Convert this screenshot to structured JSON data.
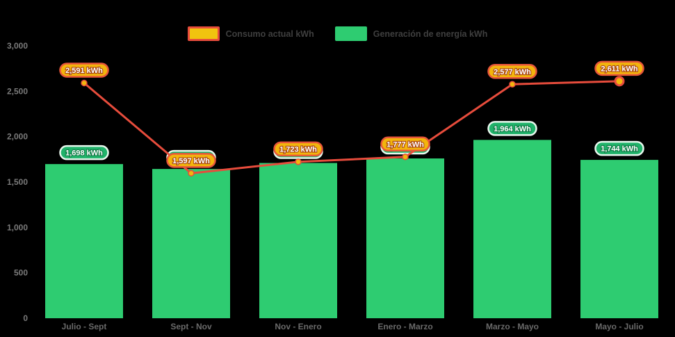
{
  "page": {
    "background": "#000000"
  },
  "legend": {
    "items": [
      {
        "label": "Consumo actual kWh",
        "swatch_fill": "#f1c40f",
        "swatch_border": "#e74c3c"
      },
      {
        "label": "Generación de energía kWh",
        "swatch_fill": "#2ecc71",
        "swatch_border": "#2ecc71"
      }
    ]
  },
  "chart_data": {
    "type": "bar+line",
    "title": "",
    "xlabel": "",
    "ylabel": "",
    "categories": [
      "Julio - Sept",
      "Sept - Nov",
      "Nov - Enero",
      "Enero - Marzo",
      "Marzo - Mayo",
      "Mayo - Julio"
    ],
    "series": [
      {
        "name": "Generación de energía kWh",
        "type": "bar",
        "color": "#2ecc71",
        "values": [
          1698,
          1644,
          1710,
          1760,
          1964,
          1744
        ],
        "labels": [
          "1,698 kWh",
          "1,644 kWh",
          "1,710 kWh",
          "1,760 kWh",
          "1,964 kWh",
          "1,744 kWh"
        ],
        "label_hidden_behind_line_badge": [
          false,
          true,
          true,
          true,
          false,
          false
        ],
        "values_estimated_indices": [
          2,
          3
        ]
      },
      {
        "name": "Consumo actual kWh",
        "type": "line",
        "color": "#e74c3c",
        "values": [
          2591,
          1597,
          1723,
          1777,
          2577,
          2611
        ],
        "labels": [
          "2,591 kWh",
          "1,597 kWh",
          "1,723 kWh",
          "1,777 kWh",
          "2,577 kWh",
          "2,611 kWh"
        ]
      }
    ],
    "ylim": [
      0,
      3000
    ],
    "yticks": [
      0,
      500,
      1000,
      1500,
      2000,
      2500,
      3000
    ],
    "ytick_labels": [
      "0",
      "500",
      "1,000",
      "1,500",
      "2,000",
      "2,500",
      "3,000"
    ],
    "grid": false,
    "legend_position": "top-center"
  },
  "styles": {
    "bar_color": "#2ecc71",
    "line_color": "#e74c3c",
    "marker_fill": "#f1b70e",
    "marker_stroke": "#e74c3c",
    "line_badge": {
      "fill": "#f2b50d",
      "stroke": "#e8563a",
      "text_outline": "#a8420e"
    },
    "bar_badge": {
      "fill": "#20b36a",
      "stroke": "#e8f8ee",
      "text_outline": "#0e7a44"
    }
  }
}
